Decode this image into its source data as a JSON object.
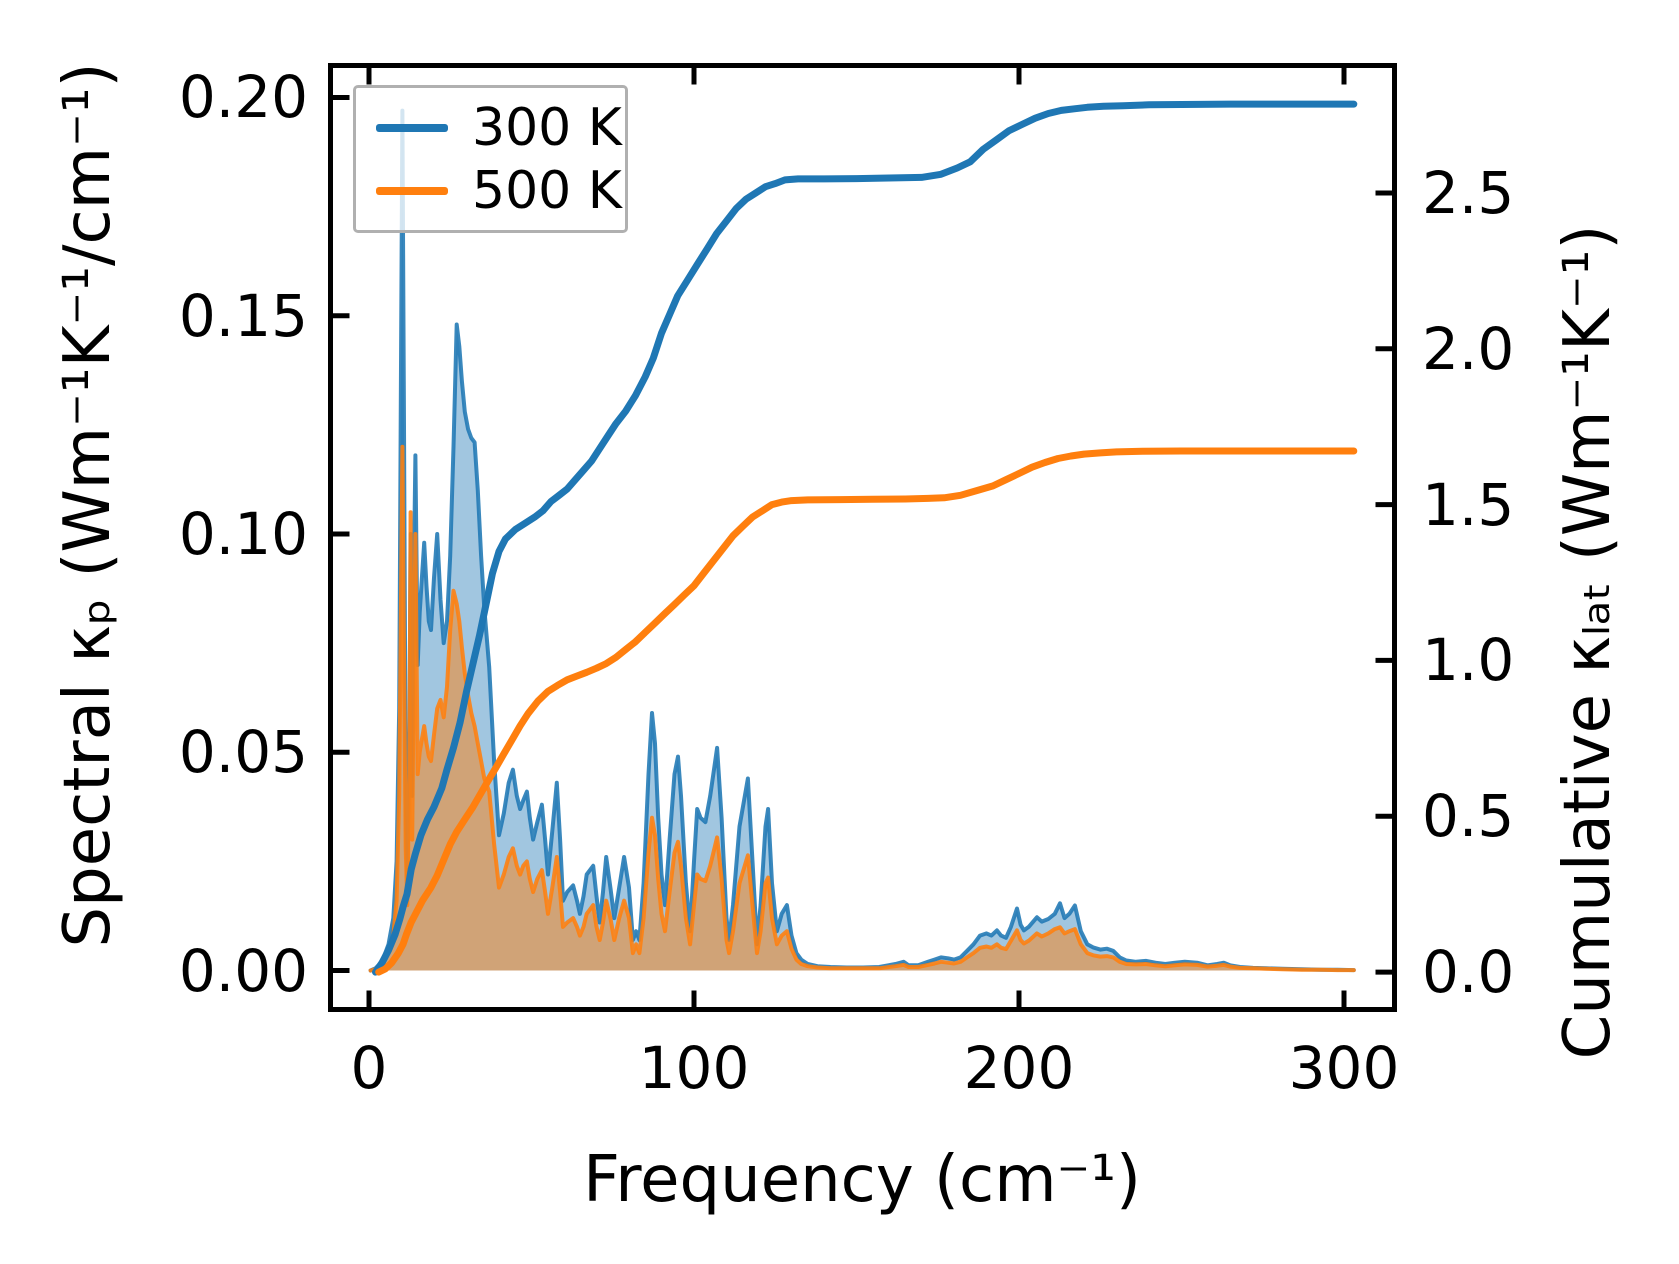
{
  "figure": {
    "description": "Spectral and cumulative lattice thermal conductivity versus phonon frequency at two temperatures"
  },
  "colors": {
    "blue": "#1f77b4",
    "orange": "#ff7f0e",
    "axis": "#000000",
    "legend_border": "#b0b0b0"
  },
  "legend": {
    "position": "upper left",
    "entries": [
      {
        "label": "300 K",
        "color": "#1f77b4"
      },
      {
        "label": "500 K",
        "color": "#ff7f0e"
      }
    ]
  },
  "chart_data": {
    "type": "area+line",
    "xlabel": "Frequency (cm⁻¹)",
    "ylabel_left": "Spectral κₚ (Wm⁻¹K⁻¹/cm⁻¹)",
    "ylabel_right": "Cumulative κₗₐₜ (Wm⁻¹K⁻¹)",
    "grid": false,
    "legend_position": "upper left",
    "xlim": [
      -12.6,
      316.3
    ],
    "ylim_left": [
      -0.0095,
      0.2079
    ],
    "ylim_right": [
      -0.128,
      2.917
    ],
    "xticks": [
      0,
      100,
      200,
      300
    ],
    "xtick_labels": [
      "0",
      "100",
      "200",
      "300"
    ],
    "yticks_left": [
      0.0,
      0.05,
      0.1,
      0.15,
      0.2
    ],
    "ytick_labels_left": [
      "0.00",
      "0.05",
      "0.10",
      "0.15",
      "0.20"
    ],
    "yticks_right": [
      0.0,
      0.5,
      1.0,
      1.5,
      2.0,
      2.5
    ],
    "ytick_labels_right": [
      "0.0",
      "0.5",
      "1.0",
      "1.5",
      "2.0",
      "2.5"
    ],
    "spectral_x": [
      0.5,
      2,
      4,
      6,
      7.5,
      8.5,
      9.3,
      9.8,
      10.3,
      10.8,
      11.3,
      11.8,
      12.4,
      12.8,
      13.3,
      13.8,
      14.3,
      15,
      15.6,
      16.3,
      17,
      17.7,
      18.4,
      19.1,
      20,
      21,
      22,
      23,
      24,
      25,
      26,
      27,
      27.8,
      28.6,
      29.5,
      30.5,
      31.5,
      32.5,
      33.5,
      34.5,
      35.5,
      37,
      38.5,
      40,
      41.5,
      43,
      44.3,
      45.5,
      46.5,
      47.5,
      48.6,
      49.5,
      50.5,
      51.8,
      53.2,
      54.2,
      55.1,
      56.4,
      57.8,
      58.8,
      59.7,
      61,
      62.8,
      64,
      64.9,
      66,
      67,
      68,
      69,
      70,
      71,
      72,
      73,
      74.3,
      75.5,
      77,
      78.5,
      80,
      81.2,
      82.2,
      83.2,
      84.5,
      86,
      87.1,
      88,
      89,
      90,
      91.1,
      92.5,
      94,
      95.1,
      96,
      97.5,
      98.8,
      100,
      101,
      102,
      103.5,
      105,
      107.1,
      108.5,
      110,
      110.8,
      112,
      114,
      116.6,
      118,
      119.4,
      120.5,
      122,
      122.8,
      124,
      125.5,
      127,
      128.6,
      130,
      131.5,
      133,
      135,
      138,
      142,
      147,
      152,
      157,
      162,
      164.5,
      166,
      169,
      172,
      174,
      176,
      178.2,
      180,
      182,
      184,
      186,
      188,
      190,
      191.5,
      193.2,
      194.5,
      196,
      197.5,
      199.4,
      200.5,
      201.5,
      203,
      205.5,
      207,
      209,
      211,
      212.6,
      214,
      215.5,
      217.2,
      219,
      221,
      222.8,
      225,
      227,
      229,
      231,
      233,
      236,
      239,
      242,
      245,
      248,
      251,
      254.8,
      258,
      261,
      263,
      265,
      268,
      272,
      276,
      281,
      287,
      293,
      298,
      303
    ],
    "series": [
      {
        "name": "300 K spectral κp",
        "axis": "left",
        "style": "area",
        "color": "#1f77b4",
        "fill_opacity": 0.42,
        "line_width": 4,
        "y": [
          0,
          0.0005,
          0.002,
          0.006,
          0.012,
          0.025,
          0.06,
          0.13,
          0.197,
          0.12,
          0.04,
          0.02,
          0.05,
          0.1,
          0.04,
          0.09,
          0.118,
          0.07,
          0.082,
          0.09,
          0.098,
          0.088,
          0.08,
          0.078,
          0.09,
          0.1,
          0.085,
          0.075,
          0.08,
          0.095,
          0.12,
          0.148,
          0.143,
          0.135,
          0.128,
          0.124,
          0.122,
          0.121,
          0.11,
          0.095,
          0.083,
          0.0695,
          0.048,
          0.031,
          0.036,
          0.043,
          0.046,
          0.04,
          0.037,
          0.039,
          0.041,
          0.035,
          0.03,
          0.034,
          0.038,
          0.03,
          0.022,
          0.032,
          0.043,
          0.03,
          0.016,
          0.018,
          0.0195,
          0.016,
          0.013,
          0.017,
          0.022,
          0.023,
          0.024,
          0.017,
          0.011,
          0.018,
          0.026,
          0.019,
          0.012,
          0.019,
          0.026,
          0.019,
          0.007,
          0.009,
          0.007,
          0.02,
          0.045,
          0.059,
          0.052,
          0.035,
          0.022,
          0.015,
          0.03,
          0.045,
          0.049,
          0.04,
          0.02,
          0.009,
          0.025,
          0.037,
          0.035,
          0.034,
          0.04,
          0.051,
          0.035,
          0.012,
          0.007,
          0.015,
          0.033,
          0.044,
          0.025,
          0.006,
          0.015,
          0.033,
          0.037,
          0.02,
          0.009,
          0.013,
          0.015,
          0.008,
          0.004,
          0.0025,
          0.0015,
          0.001,
          0.0008,
          0.0007,
          0.0007,
          0.0008,
          0.0015,
          0.002,
          0.0012,
          0.0012,
          0.002,
          0.0025,
          0.003,
          0.0028,
          0.0025,
          0.003,
          0.0045,
          0.006,
          0.008,
          0.0085,
          0.008,
          0.0092,
          0.008,
          0.0075,
          0.01,
          0.0142,
          0.0105,
          0.0092,
          0.01,
          0.0122,
          0.0112,
          0.0118,
          0.013,
          0.0154,
          0.012,
          0.013,
          0.0149,
          0.009,
          0.006,
          0.0053,
          0.0048,
          0.005,
          0.0045,
          0.003,
          0.0023,
          0.002,
          0.0022,
          0.0018,
          0.0015,
          0.0018,
          0.002,
          0.0018,
          0.0012,
          0.0015,
          0.0018,
          0.0012,
          0.0008,
          0.0006,
          0.0005,
          0.0004,
          0.0003,
          0.0002,
          0.0002,
          0.0001
        ]
      },
      {
        "name": "500 K spectral κp",
        "axis": "left",
        "style": "area",
        "color": "#ff7f0e",
        "fill_opacity": 0.5,
        "line_width": 4,
        "y": [
          0,
          0.0003,
          0.001,
          0.004,
          0.008,
          0.016,
          0.04,
          0.08,
          0.12,
          0.07,
          0.028,
          0.015,
          0.045,
          0.105,
          0.03,
          0.07,
          0.1,
          0.045,
          0.05,
          0.053,
          0.056,
          0.052,
          0.049,
          0.048,
          0.054,
          0.06,
          0.062,
          0.058,
          0.065,
          0.078,
          0.087,
          0.084,
          0.08,
          0.074,
          0.068,
          0.063,
          0.059,
          0.056,
          0.052,
          0.048,
          0.044,
          0.041,
          0.029,
          0.019,
          0.022,
          0.026,
          0.028,
          0.024,
          0.022,
          0.024,
          0.025,
          0.021,
          0.018,
          0.021,
          0.023,
          0.018,
          0.013,
          0.019,
          0.026,
          0.018,
          0.01,
          0.011,
          0.012,
          0.01,
          0.008,
          0.01,
          0.013,
          0.014,
          0.015,
          0.01,
          0.007,
          0.011,
          0.016,
          0.012,
          0.007,
          0.012,
          0.016,
          0.012,
          0.004,
          0.006,
          0.004,
          0.012,
          0.027,
          0.035,
          0.031,
          0.021,
          0.013,
          0.009,
          0.018,
          0.027,
          0.0295,
          0.024,
          0.012,
          0.006,
          0.015,
          0.022,
          0.021,
          0.0205,
          0.024,
          0.0305,
          0.021,
          0.007,
          0.004,
          0.009,
          0.02,
          0.0264,
          0.015,
          0.004,
          0.009,
          0.02,
          0.0213,
          0.012,
          0.006,
          0.008,
          0.009,
          0.005,
          0.0025,
          0.0015,
          0.001,
          0.0007,
          0.0005,
          0.0005,
          0.0005,
          0.0005,
          0.001,
          0.0013,
          0.0008,
          0.0008,
          0.0013,
          0.0016,
          0.002,
          0.0018,
          0.0016,
          0.002,
          0.003,
          0.004,
          0.0052,
          0.0055,
          0.0052,
          0.006,
          0.0052,
          0.0049,
          0.0068,
          0.0092,
          0.007,
          0.0062,
          0.0068,
          0.0085,
          0.0078,
          0.0085,
          0.0095,
          0.0099,
          0.0085,
          0.009,
          0.0095,
          0.006,
          0.004,
          0.0035,
          0.0032,
          0.0033,
          0.003,
          0.002,
          0.0015,
          0.0014,
          0.0015,
          0.0012,
          0.001,
          0.0012,
          0.0014,
          0.0013,
          0.0009,
          0.0011,
          0.0013,
          0.0009,
          0.0006,
          0.0005,
          0.0004,
          0.0003,
          0.0002,
          0.0002,
          0.0001,
          0.0001
        ]
      },
      {
        "name": "300 K cumulative κlat",
        "axis": "right",
        "style": "line",
        "color": "#1f77b4",
        "line_width": 7,
        "x": [
          2,
          4,
          6,
          8,
          9.5,
          10.5,
          11.7,
          13,
          14.3,
          16,
          18,
          20,
          22.4,
          24,
          26,
          28,
          30,
          32,
          34,
          36,
          38,
          40,
          42,
          45,
          48,
          51,
          53.5,
          56,
          58.5,
          61,
          63.5,
          66,
          68.5,
          71,
          73.5,
          76,
          79,
          82,
          85,
          87.5,
          90,
          92.5,
          95,
          98,
          101,
          104,
          107,
          110,
          113,
          116,
          119,
          122,
          125,
          128,
          132,
          140,
          150,
          160,
          170,
          176,
          181,
          185,
          189,
          193,
          197,
          201,
          205,
          209,
          213,
          217,
          221,
          226,
          232,
          240,
          250,
          265,
          285,
          303
        ],
        "y": [
          0,
          0.03,
          0.07,
          0.12,
          0.17,
          0.21,
          0.25,
          0.33,
          0.38,
          0.44,
          0.49,
          0.53,
          0.59,
          0.65,
          0.72,
          0.8,
          0.9,
          0.99,
          1.08,
          1.18,
          1.28,
          1.35,
          1.39,
          1.42,
          1.44,
          1.46,
          1.48,
          1.51,
          1.53,
          1.55,
          1.58,
          1.61,
          1.64,
          1.68,
          1.72,
          1.76,
          1.8,
          1.85,
          1.91,
          1.97,
          2.05,
          2.11,
          2.17,
          2.22,
          2.27,
          2.32,
          2.37,
          2.41,
          2.45,
          2.48,
          2.5,
          2.52,
          2.53,
          2.542,
          2.545,
          2.545,
          2.546,
          2.548,
          2.55,
          2.56,
          2.58,
          2.6,
          2.64,
          2.67,
          2.7,
          2.72,
          2.74,
          2.755,
          2.765,
          2.77,
          2.775,
          2.778,
          2.78,
          2.783,
          2.784,
          2.785,
          2.785,
          2.785
        ],
        "final_value": 2.78
      },
      {
        "name": "500 K cumulative κlat",
        "axis": "right",
        "style": "line",
        "color": "#ff7f0e",
        "line_width": 7,
        "x": [
          3,
          5,
          7,
          9,
          10.5,
          11.5,
          13,
          14.5,
          16.5,
          19,
          21,
          23,
          25,
          27,
          29.5,
          32,
          34.5,
          37,
          39,
          41.5,
          44,
          46.5,
          49,
          52,
          55,
          58,
          61,
          64,
          67,
          70,
          73,
          76,
          79,
          82,
          85,
          88,
          91,
          94,
          97,
          100,
          103,
          106,
          109,
          112,
          115,
          118,
          121,
          124,
          127,
          130,
          135,
          145,
          155,
          165,
          172,
          177,
          182,
          187,
          192,
          196,
          200,
          204,
          208,
          212,
          216,
          220,
          225,
          230,
          238,
          250,
          270,
          303
        ],
        "y": [
          0,
          0.01,
          0.03,
          0.06,
          0.09,
          0.12,
          0.16,
          0.19,
          0.23,
          0.27,
          0.31,
          0.36,
          0.41,
          0.45,
          0.49,
          0.53,
          0.575,
          0.62,
          0.655,
          0.7,
          0.745,
          0.79,
          0.83,
          0.87,
          0.9,
          0.92,
          0.938,
          0.95,
          0.962,
          0.975,
          0.99,
          1.01,
          1.035,
          1.06,
          1.09,
          1.12,
          1.15,
          1.18,
          1.21,
          1.24,
          1.28,
          1.32,
          1.36,
          1.4,
          1.43,
          1.46,
          1.48,
          1.5,
          1.508,
          1.513,
          1.515,
          1.516,
          1.517,
          1.518,
          1.52,
          1.522,
          1.53,
          1.545,
          1.56,
          1.58,
          1.6,
          1.62,
          1.635,
          1.648,
          1.656,
          1.662,
          1.666,
          1.669,
          1.671,
          1.672,
          1.672,
          1.672
        ],
        "final_value": 1.67
      }
    ]
  }
}
